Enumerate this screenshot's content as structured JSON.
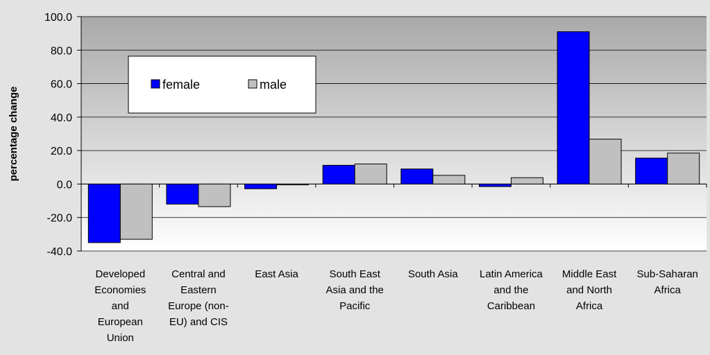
{
  "chart_data": {
    "type": "bar",
    "title": "",
    "xlabel": "",
    "ylabel": "percentage change",
    "ylim": [
      -40,
      100
    ],
    "yticks": [
      "100.0",
      "80.0",
      "60.0",
      "40.0",
      "20.0",
      "0.0",
      "-20.0",
      "-40.0"
    ],
    "grid": true,
    "legend_position": "top-left (inside plot)",
    "categories": [
      [
        "Developed",
        "Economies",
        "and",
        "European",
        "Union"
      ],
      [
        "Central and",
        "Eastern",
        "Europe (non-",
        "EU) and CIS"
      ],
      [
        "East Asia"
      ],
      [
        "South East",
        "Asia and the",
        "Pacific"
      ],
      [
        "South Asia"
      ],
      [
        "Latin America",
        "and the",
        "Caribbean"
      ],
      [
        "Middle East",
        "and North",
        "Africa"
      ],
      [
        "Sub-Saharan",
        "Africa"
      ]
    ],
    "series": [
      {
        "name": "female",
        "color": "#0000ff",
        "values": [
          -35.0,
          -12.0,
          -2.8,
          11.2,
          9.0,
          -1.5,
          91.0,
          15.5
        ]
      },
      {
        "name": "male",
        "color": "#c0c0c0",
        "values": [
          -33.0,
          -13.5,
          -0.5,
          12.0,
          5.2,
          3.8,
          26.8,
          18.5
        ]
      }
    ]
  }
}
